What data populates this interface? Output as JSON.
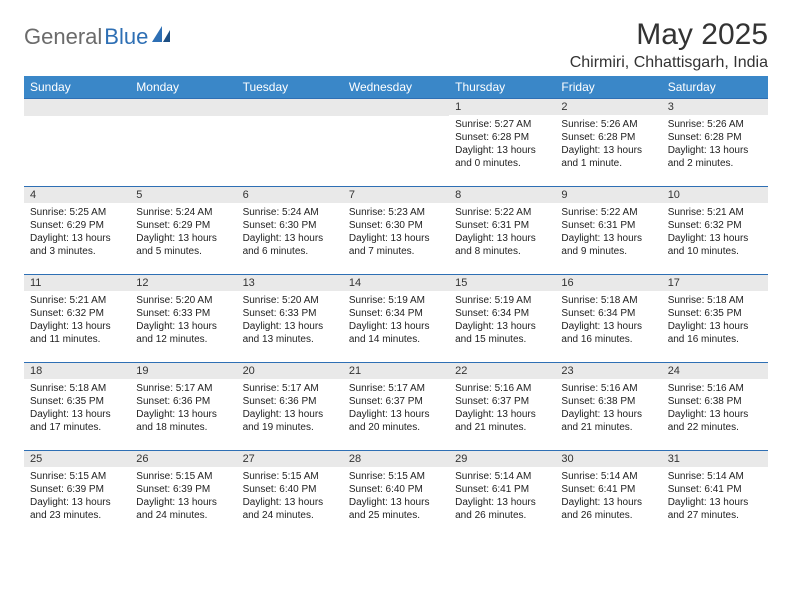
{
  "logo": {
    "part1": "General",
    "part2": "Blue"
  },
  "title": "May 2025",
  "location": "Chirmiri, Chhattisgarh, India",
  "colors": {
    "header_bg": "#3a87c8",
    "header_text": "#ffffff",
    "band_bg": "#e9e9e9",
    "band_border": "#2e6fb4",
    "logo_gray": "#6b6b6b",
    "logo_blue": "#2e6fb4",
    "text": "#222222"
  },
  "day_headers": [
    "Sunday",
    "Monday",
    "Tuesday",
    "Wednesday",
    "Thursday",
    "Friday",
    "Saturday"
  ],
  "weeks": [
    [
      {
        "blank": true
      },
      {
        "blank": true
      },
      {
        "blank": true
      },
      {
        "blank": true
      },
      {
        "num": "1",
        "sunrise": "Sunrise: 5:27 AM",
        "sunset": "Sunset: 6:28 PM",
        "day1": "Daylight: 13 hours",
        "day2": "and 0 minutes."
      },
      {
        "num": "2",
        "sunrise": "Sunrise: 5:26 AM",
        "sunset": "Sunset: 6:28 PM",
        "day1": "Daylight: 13 hours",
        "day2": "and 1 minute."
      },
      {
        "num": "3",
        "sunrise": "Sunrise: 5:26 AM",
        "sunset": "Sunset: 6:28 PM",
        "day1": "Daylight: 13 hours",
        "day2": "and 2 minutes."
      }
    ],
    [
      {
        "num": "4",
        "sunrise": "Sunrise: 5:25 AM",
        "sunset": "Sunset: 6:29 PM",
        "day1": "Daylight: 13 hours",
        "day2": "and 3 minutes."
      },
      {
        "num": "5",
        "sunrise": "Sunrise: 5:24 AM",
        "sunset": "Sunset: 6:29 PM",
        "day1": "Daylight: 13 hours",
        "day2": "and 5 minutes."
      },
      {
        "num": "6",
        "sunrise": "Sunrise: 5:24 AM",
        "sunset": "Sunset: 6:30 PM",
        "day1": "Daylight: 13 hours",
        "day2": "and 6 minutes."
      },
      {
        "num": "7",
        "sunrise": "Sunrise: 5:23 AM",
        "sunset": "Sunset: 6:30 PM",
        "day1": "Daylight: 13 hours",
        "day2": "and 7 minutes."
      },
      {
        "num": "8",
        "sunrise": "Sunrise: 5:22 AM",
        "sunset": "Sunset: 6:31 PM",
        "day1": "Daylight: 13 hours",
        "day2": "and 8 minutes."
      },
      {
        "num": "9",
        "sunrise": "Sunrise: 5:22 AM",
        "sunset": "Sunset: 6:31 PM",
        "day1": "Daylight: 13 hours",
        "day2": "and 9 minutes."
      },
      {
        "num": "10",
        "sunrise": "Sunrise: 5:21 AM",
        "sunset": "Sunset: 6:32 PM",
        "day1": "Daylight: 13 hours",
        "day2": "and 10 minutes."
      }
    ],
    [
      {
        "num": "11",
        "sunrise": "Sunrise: 5:21 AM",
        "sunset": "Sunset: 6:32 PM",
        "day1": "Daylight: 13 hours",
        "day2": "and 11 minutes."
      },
      {
        "num": "12",
        "sunrise": "Sunrise: 5:20 AM",
        "sunset": "Sunset: 6:33 PM",
        "day1": "Daylight: 13 hours",
        "day2": "and 12 minutes."
      },
      {
        "num": "13",
        "sunrise": "Sunrise: 5:20 AM",
        "sunset": "Sunset: 6:33 PM",
        "day1": "Daylight: 13 hours",
        "day2": "and 13 minutes."
      },
      {
        "num": "14",
        "sunrise": "Sunrise: 5:19 AM",
        "sunset": "Sunset: 6:34 PM",
        "day1": "Daylight: 13 hours",
        "day2": "and 14 minutes."
      },
      {
        "num": "15",
        "sunrise": "Sunrise: 5:19 AM",
        "sunset": "Sunset: 6:34 PM",
        "day1": "Daylight: 13 hours",
        "day2": "and 15 minutes."
      },
      {
        "num": "16",
        "sunrise": "Sunrise: 5:18 AM",
        "sunset": "Sunset: 6:34 PM",
        "day1": "Daylight: 13 hours",
        "day2": "and 16 minutes."
      },
      {
        "num": "17",
        "sunrise": "Sunrise: 5:18 AM",
        "sunset": "Sunset: 6:35 PM",
        "day1": "Daylight: 13 hours",
        "day2": "and 16 minutes."
      }
    ],
    [
      {
        "num": "18",
        "sunrise": "Sunrise: 5:18 AM",
        "sunset": "Sunset: 6:35 PM",
        "day1": "Daylight: 13 hours",
        "day2": "and 17 minutes."
      },
      {
        "num": "19",
        "sunrise": "Sunrise: 5:17 AM",
        "sunset": "Sunset: 6:36 PM",
        "day1": "Daylight: 13 hours",
        "day2": "and 18 minutes."
      },
      {
        "num": "20",
        "sunrise": "Sunrise: 5:17 AM",
        "sunset": "Sunset: 6:36 PM",
        "day1": "Daylight: 13 hours",
        "day2": "and 19 minutes."
      },
      {
        "num": "21",
        "sunrise": "Sunrise: 5:17 AM",
        "sunset": "Sunset: 6:37 PM",
        "day1": "Daylight: 13 hours",
        "day2": "and 20 minutes."
      },
      {
        "num": "22",
        "sunrise": "Sunrise: 5:16 AM",
        "sunset": "Sunset: 6:37 PM",
        "day1": "Daylight: 13 hours",
        "day2": "and 21 minutes."
      },
      {
        "num": "23",
        "sunrise": "Sunrise: 5:16 AM",
        "sunset": "Sunset: 6:38 PM",
        "day1": "Daylight: 13 hours",
        "day2": "and 21 minutes."
      },
      {
        "num": "24",
        "sunrise": "Sunrise: 5:16 AM",
        "sunset": "Sunset: 6:38 PM",
        "day1": "Daylight: 13 hours",
        "day2": "and 22 minutes."
      }
    ],
    [
      {
        "num": "25",
        "sunrise": "Sunrise: 5:15 AM",
        "sunset": "Sunset: 6:39 PM",
        "day1": "Daylight: 13 hours",
        "day2": "and 23 minutes."
      },
      {
        "num": "26",
        "sunrise": "Sunrise: 5:15 AM",
        "sunset": "Sunset: 6:39 PM",
        "day1": "Daylight: 13 hours",
        "day2": "and 24 minutes."
      },
      {
        "num": "27",
        "sunrise": "Sunrise: 5:15 AM",
        "sunset": "Sunset: 6:40 PM",
        "day1": "Daylight: 13 hours",
        "day2": "and 24 minutes."
      },
      {
        "num": "28",
        "sunrise": "Sunrise: 5:15 AM",
        "sunset": "Sunset: 6:40 PM",
        "day1": "Daylight: 13 hours",
        "day2": "and 25 minutes."
      },
      {
        "num": "29",
        "sunrise": "Sunrise: 5:14 AM",
        "sunset": "Sunset: 6:41 PM",
        "day1": "Daylight: 13 hours",
        "day2": "and 26 minutes."
      },
      {
        "num": "30",
        "sunrise": "Sunrise: 5:14 AM",
        "sunset": "Sunset: 6:41 PM",
        "day1": "Daylight: 13 hours",
        "day2": "and 26 minutes."
      },
      {
        "num": "31",
        "sunrise": "Sunrise: 5:14 AM",
        "sunset": "Sunset: 6:41 PM",
        "day1": "Daylight: 13 hours",
        "day2": "and 27 minutes."
      }
    ]
  ]
}
